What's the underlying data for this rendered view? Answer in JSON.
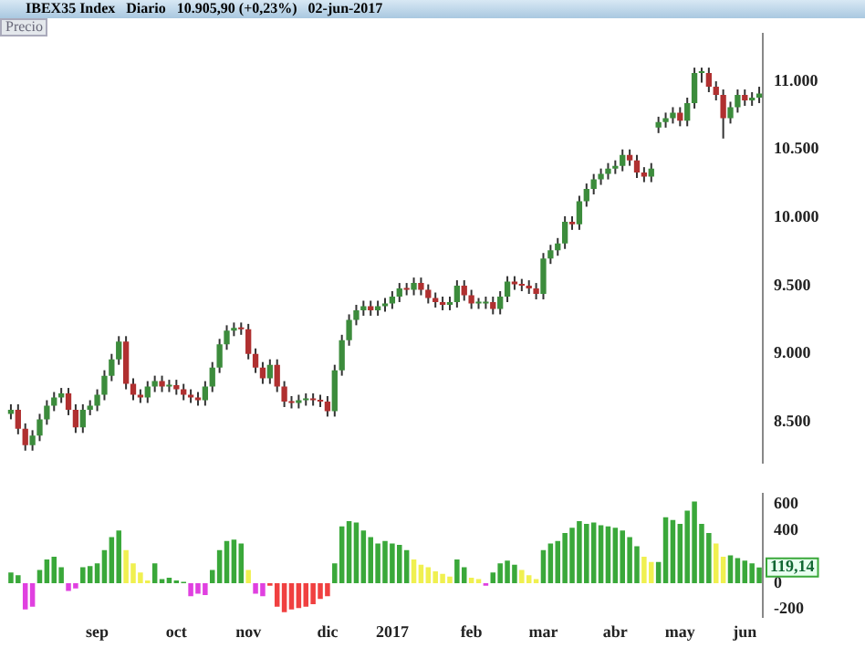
{
  "chart_data": [
    {
      "type": "candlestick",
      "title": "IBEX35 Index   Diario   10.905,90 (+0,23%)   02-jun-2017",
      "subtitle": "Precio",
      "ohlc": [
        [
          8560,
          8630,
          8520,
          8590
        ],
        [
          8590,
          8630,
          8410,
          8450
        ],
        [
          8450,
          8490,
          8290,
          8330
        ],
        [
          8330,
          8440,
          8290,
          8400
        ],
        [
          8400,
          8560,
          8360,
          8520
        ],
        [
          8520,
          8660,
          8480,
          8620
        ],
        [
          8620,
          8720,
          8580,
          8680
        ],
        [
          8680,
          8750,
          8640,
          8710
        ],
        [
          8710,
          8750,
          8550,
          8590
        ],
        [
          8590,
          8630,
          8420,
          8460
        ],
        [
          8460,
          8630,
          8420,
          8590
        ],
        [
          8590,
          8660,
          8550,
          8620
        ],
        [
          8620,
          8740,
          8580,
          8700
        ],
        [
          8700,
          8880,
          8660,
          8840
        ],
        [
          8840,
          9000,
          8800,
          8960
        ],
        [
          8960,
          9130,
          8920,
          9090
        ],
        [
          9090,
          9130,
          8740,
          8780
        ],
        [
          8780,
          8820,
          8660,
          8700
        ],
        [
          8700,
          8740,
          8640,
          8680
        ],
        [
          8680,
          8800,
          8640,
          8760
        ],
        [
          8760,
          8840,
          8720,
          8800
        ],
        [
          8800,
          8840,
          8720,
          8760
        ],
        [
          8760,
          8810,
          8720,
          8770
        ],
        [
          8770,
          8810,
          8700,
          8740
        ],
        [
          8740,
          8780,
          8660,
          8700
        ],
        [
          8700,
          8740,
          8640,
          8680
        ],
        [
          8680,
          8720,
          8620,
          8660
        ],
        [
          8660,
          8800,
          8620,
          8760
        ],
        [
          8760,
          8940,
          8720,
          8900
        ],
        [
          8900,
          9110,
          8860,
          9070
        ],
        [
          9070,
          9210,
          9030,
          9170
        ],
        [
          9170,
          9230,
          9130,
          9190
        ],
        [
          9190,
          9230,
          9140,
          9180
        ],
        [
          9180,
          9220,
          8960,
          9000
        ],
        [
          9000,
          9040,
          8860,
          8900
        ],
        [
          8900,
          8940,
          8780,
          8820
        ],
        [
          8820,
          8960,
          8780,
          8920
        ],
        [
          8920,
          8960,
          8720,
          8760
        ],
        [
          8760,
          8800,
          8610,
          8650
        ],
        [
          8650,
          8690,
          8600,
          8640
        ],
        [
          8640,
          8700,
          8600,
          8660
        ],
        [
          8660,
          8710,
          8620,
          8670
        ],
        [
          8670,
          8710,
          8620,
          8660
        ],
        [
          8660,
          8700,
          8610,
          8650
        ],
        [
          8650,
          8690,
          8540,
          8580
        ],
        [
          8580,
          8920,
          8540,
          8880
        ],
        [
          8880,
          9140,
          8840,
          9100
        ],
        [
          9100,
          9290,
          9060,
          9250
        ],
        [
          9250,
          9360,
          9210,
          9320
        ],
        [
          9320,
          9390,
          9280,
          9350
        ],
        [
          9350,
          9390,
          9280,
          9320
        ],
        [
          9320,
          9390,
          9280,
          9350
        ],
        [
          9350,
          9410,
          9310,
          9370
        ],
        [
          9370,
          9460,
          9330,
          9420
        ],
        [
          9420,
          9520,
          9380,
          9480
        ],
        [
          9480,
          9520,
          9430,
          9470
        ],
        [
          9470,
          9560,
          9430,
          9520
        ],
        [
          9520,
          9560,
          9430,
          9470
        ],
        [
          9470,
          9510,
          9370,
          9410
        ],
        [
          9410,
          9450,
          9340,
          9380
        ],
        [
          9380,
          9420,
          9320,
          9360
        ],
        [
          9360,
          9420,
          9320,
          9380
        ],
        [
          9380,
          9540,
          9340,
          9500
        ],
        [
          9500,
          9540,
          9390,
          9430
        ],
        [
          9430,
          9470,
          9330,
          9370
        ],
        [
          9370,
          9410,
          9330,
          9370
        ],
        [
          9370,
          9420,
          9330,
          9380
        ],
        [
          9380,
          9420,
          9290,
          9330
        ],
        [
          9330,
          9460,
          9290,
          9420
        ],
        [
          9420,
          9570,
          9380,
          9530
        ],
        [
          9530,
          9570,
          9470,
          9510
        ],
        [
          9510,
          9550,
          9460,
          9500
        ],
        [
          9500,
          9540,
          9440,
          9480
        ],
        [
          9480,
          9520,
          9400,
          9440
        ],
        [
          9440,
          9740,
          9400,
          9700
        ],
        [
          9700,
          9800,
          9660,
          9760
        ],
        [
          9760,
          9850,
          9720,
          9810
        ],
        [
          9810,
          10010,
          9770,
          9970
        ],
        [
          9970,
          10010,
          9910,
          9950
        ],
        [
          9950,
          10160,
          9910,
          10120
        ],
        [
          10120,
          10250,
          10080,
          10210
        ],
        [
          10210,
          10320,
          10170,
          10280
        ],
        [
          10280,
          10360,
          10240,
          10320
        ],
        [
          10320,
          10400,
          10280,
          10360
        ],
        [
          10360,
          10420,
          10320,
          10380
        ],
        [
          10380,
          10500,
          10340,
          10460
        ],
        [
          10460,
          10500,
          10380,
          10420
        ],
        [
          10420,
          10460,
          10290,
          10330
        ],
        [
          10330,
          10370,
          10260,
          10300
        ],
        [
          10300,
          10400,
          10260,
          10360
        ],
        [
          10660,
          10740,
          10620,
          10700
        ],
        [
          10700,
          10770,
          10660,
          10730
        ],
        [
          10730,
          10810,
          10690,
          10770
        ],
        [
          10770,
          10810,
          10670,
          10710
        ],
        [
          10710,
          10880,
          10670,
          10840
        ],
        [
          10840,
          11100,
          10800,
          11060
        ],
        [
          11060,
          11100,
          10990,
          11060
        ],
        [
          11060,
          11100,
          10920,
          10960
        ],
        [
          10960,
          11000,
          10860,
          10900
        ],
        [
          10900,
          10940,
          10580,
          10730
        ],
        [
          10730,
          10850,
          10690,
          10810
        ],
        [
          10810,
          10940,
          10770,
          10900
        ],
        [
          10900,
          10940,
          10820,
          10860
        ],
        [
          10860,
          10920,
          10820,
          10880
        ],
        [
          10880,
          10960,
          10840,
          10910
        ]
      ],
      "ylim": [
        8200,
        11350
      ],
      "yticks": [
        {
          "value": 8500,
          "label": "8.500"
        },
        {
          "value": 9000,
          "label": "9.000"
        },
        {
          "value": 9500,
          "label": "9.500"
        },
        {
          "value": 10000,
          "label": "10.000"
        },
        {
          "value": 10500,
          "label": "10.500"
        },
        {
          "value": 11000,
          "label": "11.000"
        }
      ],
      "tick_labels": "y"
    },
    {
      "type": "bar",
      "categories": [
        null,
        null,
        null,
        null,
        null,
        null,
        null,
        null,
        null,
        null,
        null,
        null,
        "sep",
        null,
        null,
        null,
        null,
        null,
        null,
        null,
        null,
        null,
        null,
        "oct",
        null,
        null,
        null,
        null,
        null,
        null,
        null,
        null,
        null,
        "nov",
        null,
        null,
        null,
        null,
        null,
        null,
        null,
        null,
        null,
        null,
        "dic",
        null,
        null,
        null,
        null,
        null,
        null,
        null,
        null,
        "2017",
        null,
        null,
        null,
        null,
        null,
        null,
        null,
        null,
        null,
        null,
        "feb",
        null,
        null,
        null,
        null,
        null,
        null,
        null,
        null,
        null,
        "mar",
        null,
        null,
        null,
        null,
        null,
        null,
        null,
        null,
        null,
        "abr",
        null,
        null,
        null,
        null,
        null,
        null,
        null,
        null,
        "may",
        null,
        null,
        null,
        null,
        null,
        null,
        null,
        null,
        "jun",
        null,
        null
      ],
      "values": [
        80,
        60,
        -200,
        -180,
        100,
        180,
        200,
        120,
        -60,
        -40,
        120,
        130,
        150,
        250,
        350,
        400,
        250,
        150,
        80,
        20,
        150,
        30,
        40,
        20,
        10,
        -100,
        -80,
        -90,
        100,
        250,
        320,
        330,
        300,
        100,
        -80,
        -100,
        -20,
        -180,
        -220,
        -200,
        -190,
        -180,
        -160,
        -120,
        -100,
        150,
        430,
        470,
        460,
        400,
        350,
        300,
        320,
        300,
        290,
        250,
        180,
        140,
        120,
        90,
        70,
        50,
        180,
        120,
        40,
        30,
        -20,
        80,
        150,
        170,
        140,
        100,
        60,
        30,
        250,
        300,
        320,
        380,
        420,
        470,
        450,
        460,
        440,
        430,
        420,
        400,
        350,
        280,
        200,
        160,
        160,
        500,
        480,
        450,
        550,
        620,
        450,
        380,
        300,
        200,
        210,
        190,
        170,
        150,
        119.14
      ],
      "colors": [
        "#3aa83a",
        "#3aa83a",
        "#e040e0",
        "#e040e0",
        "#3aa83a",
        "#3aa83a",
        "#3aa83a",
        "#3aa83a",
        "#e040e0",
        "#e040e0",
        "#3aa83a",
        "#3aa83a",
        "#3aa83a",
        "#3aa83a",
        "#3aa83a",
        "#3aa83a",
        "#f0f050",
        "#f0f050",
        "#f0f050",
        "#f0f050",
        "#3aa83a",
        "#3aa83a",
        "#3aa83a",
        "#3aa83a",
        "#3aa83a",
        "#e040e0",
        "#e040e0",
        "#e040e0",
        "#3aa83a",
        "#3aa83a",
        "#3aa83a",
        "#3aa83a",
        "#3aa83a",
        "#f0f050",
        "#e040e0",
        "#e040e0",
        "#f04040",
        "#f04040",
        "#f04040",
        "#f04040",
        "#f04040",
        "#f04040",
        "#f04040",
        "#f04040",
        "#f04040",
        "#3aa83a",
        "#3aa83a",
        "#3aa83a",
        "#3aa83a",
        "#3aa83a",
        "#3aa83a",
        "#3aa83a",
        "#3aa83a",
        "#3aa83a",
        "#3aa83a",
        "#3aa83a",
        "#f0f050",
        "#f0f050",
        "#f0f050",
        "#f0f050",
        "#f0f050",
        "#f0f050",
        "#3aa83a",
        "#3aa83a",
        "#f0f050",
        "#f0f050",
        "#e040e0",
        "#3aa83a",
        "#3aa83a",
        "#3aa83a",
        "#3aa83a",
        "#f0f050",
        "#f0f050",
        "#f0f050",
        "#3aa83a",
        "#3aa83a",
        "#3aa83a",
        "#3aa83a",
        "#3aa83a",
        "#3aa83a",
        "#3aa83a",
        "#3aa83a",
        "#3aa83a",
        "#3aa83a",
        "#3aa83a",
        "#3aa83a",
        "#3aa83a",
        "#3aa83a",
        "#f0f050",
        "#f0f050",
        "#3aa83a",
        "#3aa83a",
        "#3aa83a",
        "#3aa83a",
        "#3aa83a",
        "#3aa83a",
        "#3aa83a",
        "#3aa83a",
        "#f0f050",
        "#f0f050",
        "#3aa83a",
        "#3aa83a",
        "#3aa83a",
        "#3aa83a",
        "#3aa83a"
      ],
      "ylim": [
        -260,
        680
      ],
      "yticks": [
        600,
        400,
        0,
        -200
      ],
      "annotations": [
        "119,14"
      ]
    }
  ]
}
